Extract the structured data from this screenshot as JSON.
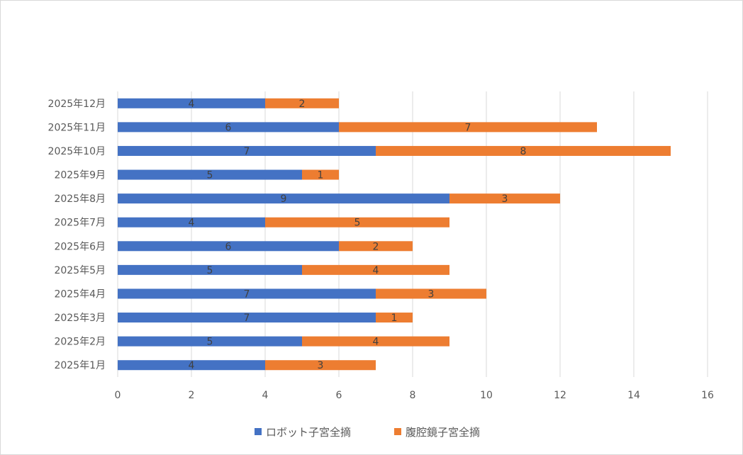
{
  "colors": {
    "series_1": "#4472C4",
    "series_2": "#ED7D31",
    "grid": "#d9d9d9",
    "text": "#595959"
  },
  "chart_data": {
    "type": "bar",
    "orientation": "horizontal",
    "stacked": true,
    "title": "",
    "xlabel": "",
    "ylabel": "",
    "xlim": [
      0,
      16
    ],
    "x_ticks": [
      0,
      2,
      4,
      6,
      8,
      10,
      12,
      14,
      16
    ],
    "grid": true,
    "legend_position": "bottom",
    "categories": [
      "2025年1月",
      "2025年2月",
      "2025年3月",
      "2025年4月",
      "2025年5月",
      "2025年6月",
      "2025年7月",
      "2025年8月",
      "2025年9月",
      "2025年10月",
      "2025年11月",
      "2025年12月"
    ],
    "series": [
      {
        "name": "ロボット子宮全摘",
        "color": "#4472C4",
        "values": [
          4,
          5,
          7,
          7,
          5,
          6,
          4,
          9,
          5,
          7,
          6,
          4
        ]
      },
      {
        "name": "腹腔鏡子宮全摘",
        "color": "#ED7D31",
        "values": [
          3,
          4,
          1,
          3,
          4,
          2,
          5,
          3,
          1,
          8,
          7,
          2
        ]
      }
    ]
  }
}
